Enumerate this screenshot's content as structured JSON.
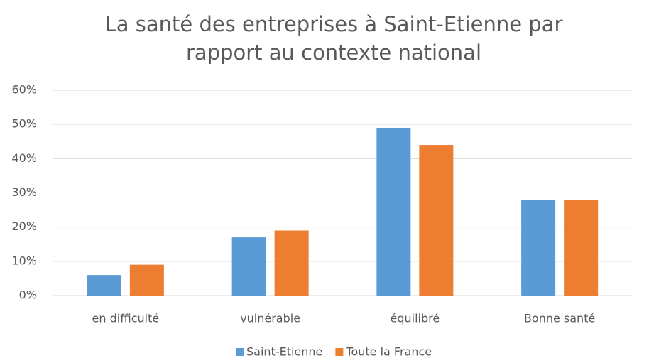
{
  "chart_data": {
    "type": "bar",
    "title": [
      "La santé des entreprises à Saint-Etienne par",
      "rapport au contexte national"
    ],
    "categories": [
      "en difficulté",
      "vulnérable",
      "équilibré",
      "Bonne santé"
    ],
    "series": [
      {
        "name": "Saint-Etienne",
        "color": "#5b9bd5",
        "values": [
          6,
          17,
          49,
          28
        ]
      },
      {
        "name": "Toute la France",
        "color": "#ed7d31",
        "values": [
          9,
          19,
          44,
          28
        ]
      }
    ],
    "ylim": [
      0,
      60
    ],
    "yticks": [
      {
        "value": 0,
        "label": "0%"
      },
      {
        "value": 10,
        "label": "10%"
      },
      {
        "value": 20,
        "label": "20%"
      },
      {
        "value": 30,
        "label": "30%"
      },
      {
        "value": 40,
        "label": "40%"
      },
      {
        "value": 50,
        "label": "50%"
      },
      {
        "value": 60,
        "label": "60%"
      }
    ],
    "grid": true,
    "legend": "bottom"
  }
}
